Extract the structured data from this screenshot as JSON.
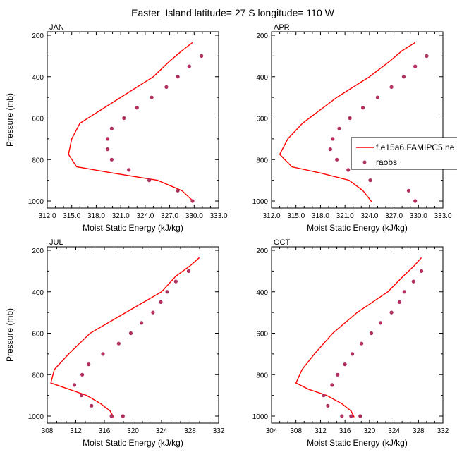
{
  "title": "Easter_Island  latitude= 27 S longitude= 110 W",
  "legend": {
    "model_label": "f.e15a6.FAMIPC5.ne",
    "obs_label": "raobs"
  },
  "colors": {
    "model": "#ff0000",
    "obs": "#b03060"
  },
  "chart_data": [
    {
      "type": "line",
      "panel": "JAN",
      "xlabel": "Moist Static Energy (kJ/kg)",
      "ylabel": "Pressure (mb)",
      "xlim": [
        312,
        333
      ],
      "ylim": [
        1000,
        200
      ],
      "xticks": [
        312,
        315,
        318,
        321,
        324,
        327,
        330,
        333
      ],
      "xtick_labels": [
        "312.0",
        "315.0",
        "318.0",
        "321.0",
        "324.0",
        "327.0",
        "330.0",
        "333.0"
      ],
      "yticks": [
        200,
        400,
        600,
        800,
        1000
      ],
      "ytick_labels": [
        "200",
        "400",
        "600",
        "800",
        "1000"
      ],
      "series": [
        {
          "name": "f.e15a6.FAMIPC5.ne",
          "kind": "line",
          "x": [
            329.8,
            328.5,
            327.0,
            325.0,
            321.0,
            316.0,
            315.0,
            314.6,
            315.6,
            320.0,
            325.5,
            328.5,
            330.0
          ],
          "y": [
            235,
            275,
            325,
            400,
            500,
            625,
            700,
            775,
            835,
            865,
            900,
            950,
            1005
          ]
        },
        {
          "name": "raobs",
          "kind": "scatter",
          "x": [
            330.9,
            329.4,
            328.0,
            326.6,
            324.8,
            323.0,
            321.4,
            319.9,
            319.4,
            319.4,
            319.9,
            322.0,
            324.5,
            328.0,
            329.8
          ],
          "y": [
            300,
            350,
            400,
            450,
            500,
            550,
            600,
            650,
            700,
            750,
            800,
            850,
            900,
            950,
            1000
          ]
        }
      ]
    },
    {
      "type": "line",
      "panel": "APR",
      "xlabel": "Moist Static Energy (kJ/kg)",
      "ylabel": "",
      "xlim": [
        312,
        333
      ],
      "ylim": [
        1000,
        200
      ],
      "xticks": [
        312,
        315,
        318,
        321,
        324,
        327,
        330,
        333
      ],
      "xtick_labels": [
        "312.0",
        "315.0",
        "318.0",
        "321.0",
        "324.0",
        "327.0",
        "330.0",
        "333.0"
      ],
      "yticks": [
        200,
        400,
        600,
        800,
        1000
      ],
      "ytick_labels": [
        "200",
        "400",
        "600",
        "800",
        "1000"
      ],
      "series": [
        {
          "name": "f.e15a6.FAMIPC5.ne",
          "kind": "line",
          "x": [
            329.6,
            328.0,
            326.5,
            324.0,
            320.0,
            315.8,
            314.0,
            313.0,
            314.5,
            318.0,
            321.5,
            323.2,
            324.3
          ],
          "y": [
            235,
            275,
            325,
            400,
            500,
            625,
            700,
            775,
            835,
            865,
            900,
            950,
            1005
          ]
        },
        {
          "name": "raobs",
          "kind": "scatter",
          "x": [
            331.0,
            329.6,
            328.2,
            326.7,
            325.0,
            323.2,
            321.6,
            320.3,
            319.5,
            319.2,
            320.0,
            321.4,
            324.1,
            328.8,
            329.6
          ],
          "y": [
            300,
            350,
            400,
            450,
            500,
            550,
            600,
            650,
            700,
            750,
            800,
            850,
            900,
            950,
            1000
          ]
        }
      ]
    },
    {
      "type": "line",
      "panel": "JUL",
      "xlabel": "Moist Static Energy (kJ/kg)",
      "ylabel": "Pressure (mb)",
      "xlim": [
        308,
        332
      ],
      "ylim": [
        1000,
        200
      ],
      "xticks": [
        308,
        312,
        316,
        320,
        324,
        328,
        332
      ],
      "xtick_labels": [
        "308",
        "312",
        "316",
        "320",
        "324",
        "328",
        "332"
      ],
      "yticks": [
        200,
        400,
        600,
        800,
        1000
      ],
      "ytick_labels": [
        "200",
        "400",
        "600",
        "800",
        "1000"
      ],
      "series": [
        {
          "name": "f.e15a6.FAMIPC5.ne",
          "kind": "line",
          "x": [
            329.3,
            328.0,
            326.0,
            324.0,
            319.0,
            314.0,
            311.0,
            309.0,
            308.5,
            311.0,
            313.5,
            315.5,
            316.8,
            317.3
          ],
          "y": [
            235,
            275,
            325,
            400,
            500,
            600,
            700,
            775,
            840,
            870,
            900,
            940,
            975,
            1005
          ]
        },
        {
          "name": "raobs",
          "kind": "scatter",
          "x": [
            327.8,
            326.0,
            324.8,
            323.9,
            322.8,
            321.2,
            319.7,
            318.0,
            315.8,
            313.8,
            312.9,
            311.8,
            312.8,
            314.2,
            317.0,
            318.6
          ],
          "y": [
            300,
            350,
            400,
            450,
            500,
            550,
            600,
            650,
            700,
            750,
            800,
            850,
            900,
            950,
            1000,
            1000
          ]
        }
      ]
    },
    {
      "type": "line",
      "panel": "OCT",
      "xlabel": "Moist Static Energy (kJ/kg)",
      "ylabel": "",
      "xlim": [
        304,
        332
      ],
      "ylim": [
        1000,
        200
      ],
      "xticks": [
        304,
        308,
        312,
        316,
        320,
        324,
        328,
        332
      ],
      "xtick_labels": [
        "304",
        "308",
        "312",
        "316",
        "320",
        "324",
        "328",
        "332"
      ],
      "yticks": [
        200,
        400,
        600,
        800,
        1000
      ],
      "ytick_labels": [
        "200",
        "400",
        "600",
        "800",
        "1000"
      ],
      "series": [
        {
          "name": "f.e15a6.FAMIPC5.ne",
          "kind": "line",
          "x": [
            328.5,
            327.3,
            325.5,
            323.0,
            318.0,
            314.0,
            311.0,
            309.0,
            308.0,
            310.0,
            313.0,
            315.5,
            317.0,
            317.5
          ],
          "y": [
            235,
            275,
            325,
            400,
            500,
            600,
            700,
            775,
            840,
            870,
            900,
            940,
            975,
            1005
          ]
        },
        {
          "name": "raobs",
          "kind": "scatter",
          "x": [
            328.5,
            327.2,
            325.7,
            324.9,
            323.6,
            321.8,
            320.3,
            318.7,
            317.2,
            316.0,
            314.8,
            313.9,
            312.5,
            313.2,
            315.5,
            317.0,
            318.5
          ],
          "y": [
            300,
            350,
            400,
            450,
            500,
            550,
            600,
            650,
            700,
            750,
            800,
            850,
            900,
            950,
            1000,
            1000,
            1000
          ]
        }
      ]
    }
  ]
}
